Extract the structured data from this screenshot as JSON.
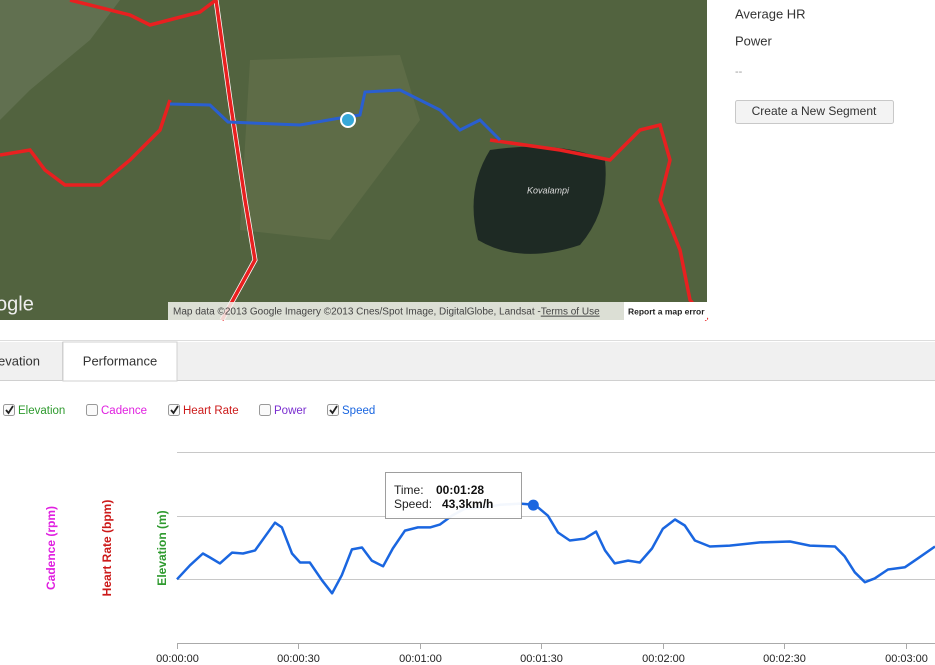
{
  "map": {
    "lake_label": "Kovalampi",
    "logo": "ogle",
    "attribution": "Map data ©2013 Google Imagery ©2013 Cnes/Spot Image, DigitalGlobe, Landsat - ",
    "terms": "Terms of Use",
    "report": "Report a map error"
  },
  "sidebar": {
    "items": [
      "Average HR",
      "Power",
      "--"
    ],
    "button": "Create a New Segment"
  },
  "tabs": [
    "evation",
    "Performance"
  ],
  "toggles": [
    {
      "label": "Elevation",
      "checked": true,
      "color": "#2e9a2e"
    },
    {
      "label": "Cadence",
      "checked": false,
      "color": "#e020e0"
    },
    {
      "label": "Heart Rate",
      "checked": true,
      "color": "#cc1a1a"
    },
    {
      "label": "Power",
      "checked": false,
      "color": "#7a2ed0"
    },
    {
      "label": "Speed",
      "checked": true,
      "color": "#1a66e0"
    }
  ],
  "chart_data": {
    "type": "line",
    "axis_labels": [
      {
        "text": "Cadence (rpm)",
        "color": "#e020e0"
      },
      {
        "text": "Heart Rate (bpm)",
        "color": "#cc1a1a"
      },
      {
        "text": "Elevation (m)",
        "color": "#2e9a2e"
      }
    ],
    "x": [
      0,
      3.2,
      6.4,
      8.1,
      10.6,
      13.6,
      16.3,
      19.3,
      21.7,
      24.2,
      25.9,
      28.4,
      30.4,
      32.8,
      35.8,
      38.3,
      40.7,
      43.2,
      45.7,
      48.1,
      50.9,
      53.3,
      56.3,
      59.5,
      62.5,
      64.9,
      67.9,
      71.1,
      74.8,
      79.8,
      84.7,
      88.4,
      91.6,
      94.1,
      97,
      100.7,
      103.5,
      105.7,
      108.1,
      111.4,
      114.3,
      117.3,
      120,
      123,
      125.4,
      127.9,
      131.6,
      136.5,
      144,
      151.4,
      156.3,
      162.5,
      164.9,
      167.4,
      169.9,
      172.3,
      175.6,
      179.8,
      183,
      187.2
    ],
    "series": [
      {
        "color": "#1a66e0",
        "values": [
          20,
          24.4,
          28.1,
          26.9,
          25,
          28.4,
          28.1,
          29.1,
          33.4,
          37.8,
          36.3,
          28.1,
          25.3,
          25.3,
          19.7,
          15.6,
          21.3,
          29.4,
          30,
          25.9,
          24.1,
          29.7,
          35.3,
          36.3,
          36.3,
          37.2,
          40,
          42.2,
          42.5,
          43.4,
          43.8,
          43.4,
          40,
          34.7,
          32.2,
          32.8,
          35,
          29.1,
          25,
          25.9,
          25.3,
          29.7,
          35.9,
          38.8,
          36.9,
          32.2,
          30.3,
          30.6,
          31.6,
          31.9,
          30.6,
          30.3,
          27.2,
          22.2,
          19.1,
          20.3,
          23.1,
          23.8,
          26.6,
          30.3
        ]
      }
    ],
    "xlim": [
      0,
      187.2
    ],
    "xticks": [
      {
        "value": 0,
        "label": "00:00:00"
      },
      {
        "value": 30,
        "label": "00:00:30"
      },
      {
        "value": 60,
        "label": "00:01:00"
      },
      {
        "value": 90,
        "label": "00:01:30"
      },
      {
        "value": 120,
        "label": "00:02:00"
      },
      {
        "value": 150,
        "label": "00:02:30"
      },
      {
        "value": 180,
        "label": "00:03:00"
      }
    ],
    "ylim": [
      0,
      60
    ],
    "yticks": [
      0,
      20,
      40,
      60
    ],
    "grid": true,
    "tooltip": {
      "time_label": "Time:",
      "x": 88,
      "x_label": "00:01:28",
      "speed_label": "Speed:",
      "value": 43.3,
      "value_label": "43,3km/h"
    }
  }
}
